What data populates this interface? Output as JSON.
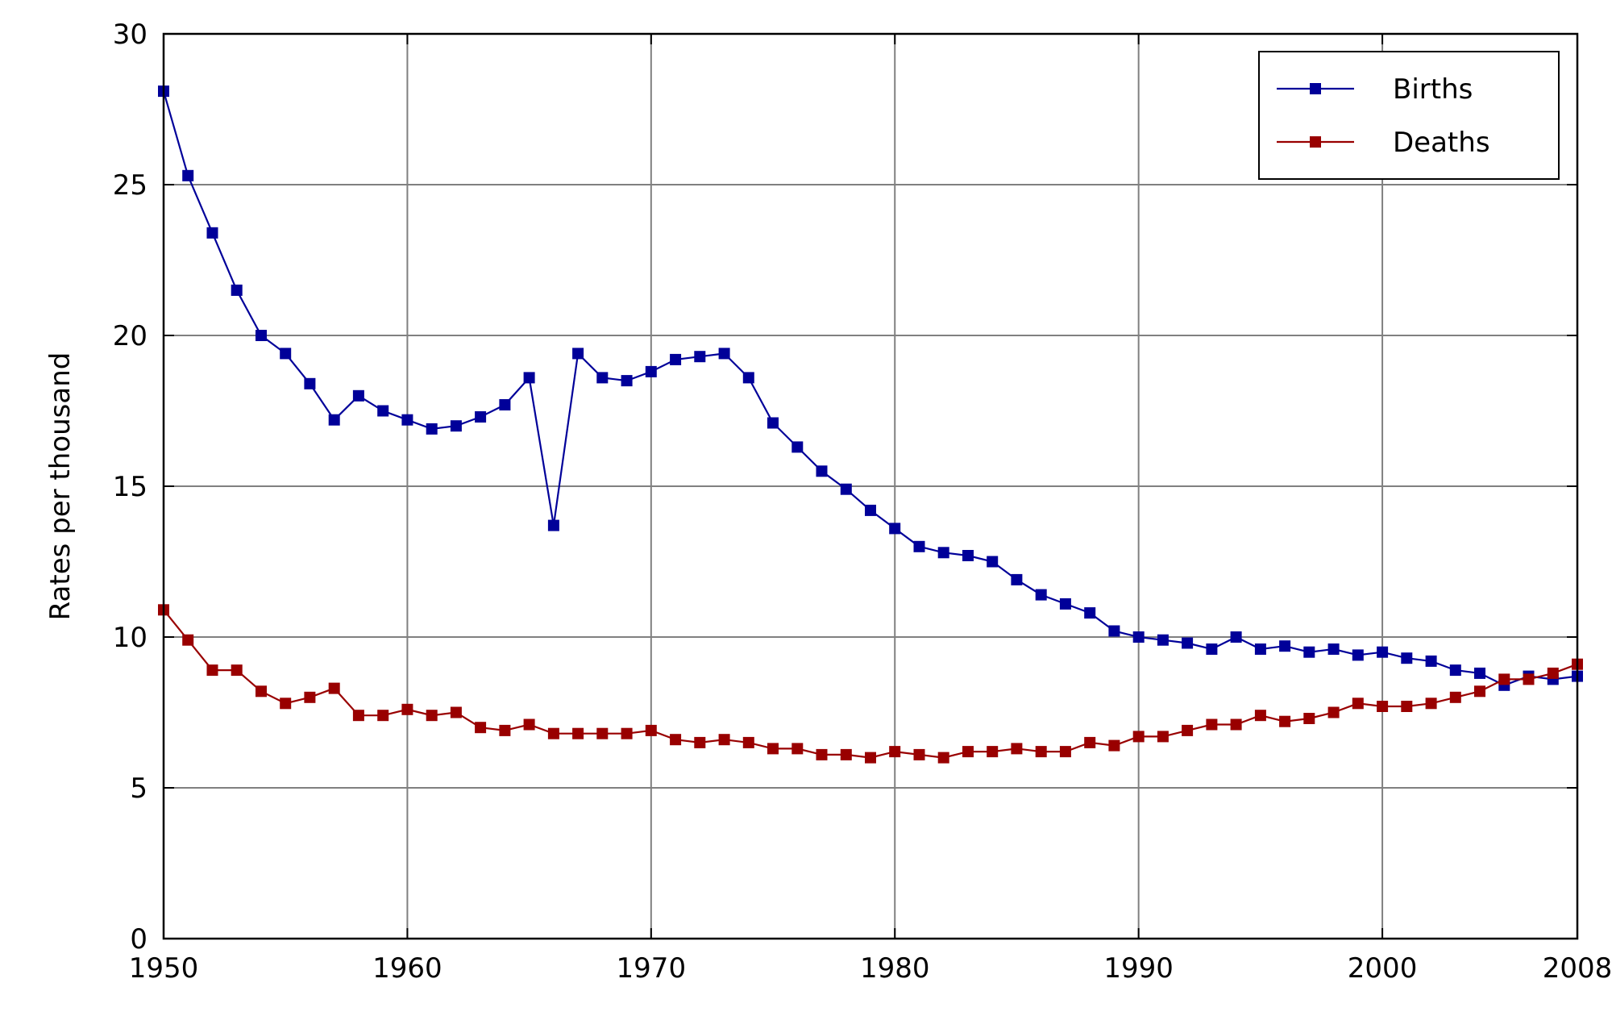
{
  "chart_data": {
    "type": "line",
    "title": "",
    "xlabel": "",
    "ylabel": "Rates per thousand",
    "xlim": [
      1950,
      2008
    ],
    "ylim": [
      0,
      30
    ],
    "x_ticks": [
      1950,
      1960,
      1970,
      1980,
      1990,
      2000,
      2008
    ],
    "y_ticks": [
      0,
      5,
      10,
      15,
      20,
      25,
      30
    ],
    "grid": true,
    "legend_position": "top-right",
    "x": [
      1950,
      1951,
      1952,
      1953,
      1954,
      1955,
      1956,
      1957,
      1958,
      1959,
      1960,
      1961,
      1962,
      1963,
      1964,
      1965,
      1966,
      1967,
      1968,
      1969,
      1970,
      1971,
      1972,
      1973,
      1974,
      1975,
      1976,
      1977,
      1978,
      1979,
      1980,
      1981,
      1982,
      1983,
      1984,
      1985,
      1986,
      1987,
      1988,
      1989,
      1990,
      1991,
      1992,
      1993,
      1994,
      1995,
      1996,
      1997,
      1998,
      1999,
      2000,
      2001,
      2002,
      2003,
      2004,
      2005,
      2006,
      2007,
      2008
    ],
    "series": [
      {
        "name": "Births",
        "color": "#000099",
        "marker": "square",
        "values": [
          28.1,
          25.3,
          23.4,
          21.5,
          20.0,
          19.4,
          18.4,
          17.2,
          18.0,
          17.5,
          17.2,
          16.9,
          17.0,
          17.3,
          17.7,
          18.6,
          13.7,
          19.4,
          18.6,
          18.5,
          18.8,
          19.2,
          19.3,
          19.4,
          18.6,
          17.1,
          16.3,
          15.5,
          14.9,
          14.2,
          13.6,
          13.0,
          12.8,
          12.7,
          12.5,
          11.9,
          11.4,
          11.1,
          10.8,
          10.2,
          10.0,
          9.9,
          9.8,
          9.6,
          10.0,
          9.6,
          9.7,
          9.5,
          9.6,
          9.4,
          9.5,
          9.3,
          9.2,
          8.9,
          8.8,
          8.4,
          8.7,
          8.6,
          8.7
        ]
      },
      {
        "name": "Deaths",
        "color": "#990000",
        "marker": "square",
        "values": [
          10.9,
          9.9,
          8.9,
          8.9,
          8.2,
          7.8,
          8.0,
          8.3,
          7.4,
          7.4,
          7.6,
          7.4,
          7.5,
          7.0,
          6.9,
          7.1,
          6.8,
          6.8,
          6.8,
          6.8,
          6.9,
          6.6,
          6.5,
          6.6,
          6.5,
          6.3,
          6.3,
          6.1,
          6.1,
          6.0,
          6.2,
          6.1,
          6.0,
          6.2,
          6.2,
          6.3,
          6.2,
          6.2,
          6.5,
          6.4,
          6.7,
          6.7,
          6.9,
          7.1,
          7.1,
          7.4,
          7.2,
          7.3,
          7.5,
          7.8,
          7.7,
          7.7,
          7.8,
          8.0,
          8.2,
          8.6,
          8.6,
          8.8,
          9.1
        ]
      }
    ]
  }
}
